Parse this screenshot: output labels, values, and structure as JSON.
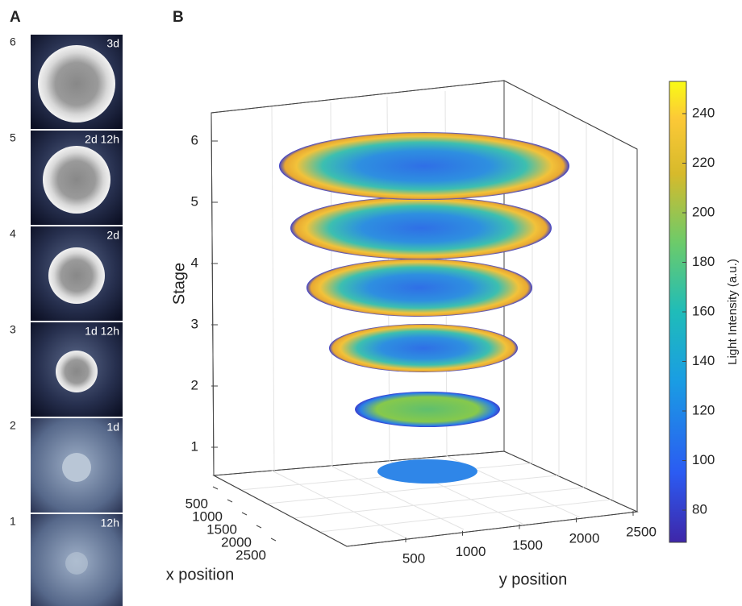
{
  "panel_a": {
    "label": "A",
    "rows": [
      {
        "stage": "6",
        "time": "3d"
      },
      {
        "stage": "5",
        "time": "2d 12h"
      },
      {
        "stage": "4",
        "time": "2d"
      },
      {
        "stage": "3",
        "time": "1d 12h"
      },
      {
        "stage": "2",
        "time": "1d"
      },
      {
        "stage": "1",
        "time": "12h"
      }
    ]
  },
  "panel_b": {
    "label": "B",
    "zlabel": "Stage",
    "xlabel": "x position",
    "ylabel": "y position",
    "zticks": [
      1,
      2,
      3,
      4,
      5,
      6
    ],
    "xticks": [
      500,
      1000,
      1500,
      2000,
      2500
    ],
    "yticks": [
      500,
      1000,
      1500,
      2000,
      2500
    ],
    "colorbar": {
      "label": "Light Intensity (a.u.)",
      "lim": [
        67,
        253
      ],
      "ticks": [
        80,
        100,
        120,
        140,
        160,
        180,
        200,
        220,
        240
      ]
    }
  }
}
